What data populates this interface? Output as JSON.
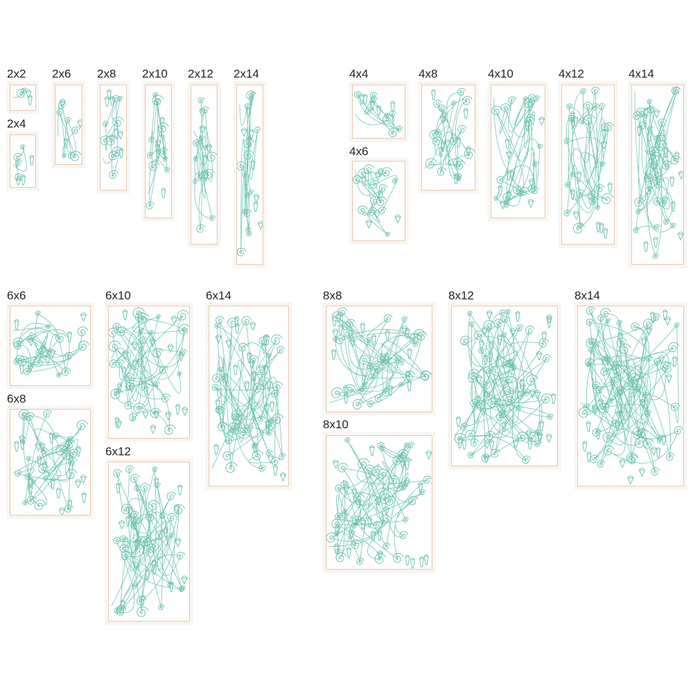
{
  "colors": {
    "stitch": "#6cc3b0",
    "border": "#e3c4a2"
  },
  "blocks": [
    {
      "label": "2x2"
    },
    {
      "label": "2x4"
    },
    {
      "label": "2x6"
    },
    {
      "label": "2x8"
    },
    {
      "label": "2x10"
    },
    {
      "label": "2x12"
    },
    {
      "label": "2x14"
    },
    {
      "label": "4x4"
    },
    {
      "label": "4x6"
    },
    {
      "label": "4x8"
    },
    {
      "label": "4x10"
    },
    {
      "label": "4x12"
    },
    {
      "label": "4x14"
    },
    {
      "label": "6x6"
    },
    {
      "label": "6x8"
    },
    {
      "label": "6x10"
    },
    {
      "label": "6x12"
    },
    {
      "label": "6x14"
    },
    {
      "label": "8x8"
    },
    {
      "label": "8x10"
    },
    {
      "label": "8x12"
    },
    {
      "label": "8x14"
    }
  ]
}
